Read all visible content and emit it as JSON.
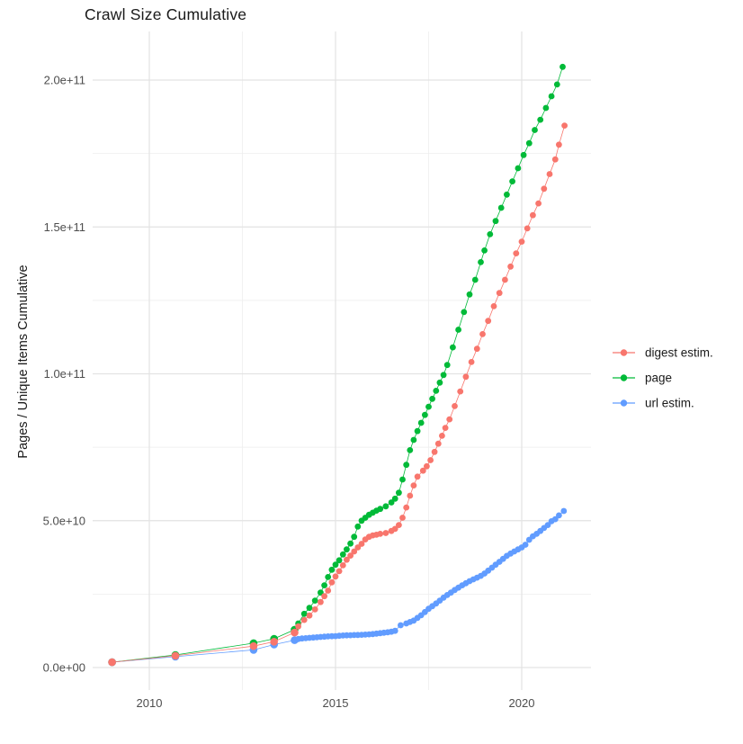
{
  "title": "Crawl Size Cumulative",
  "y_axis": {
    "label": "Pages / Unique Items Cumulative",
    "tick_labels": [
      "0.0e+00",
      "5.0e+10",
      "1.0e+11",
      "1.5e+11",
      "2.0e+11"
    ],
    "tick_values": [
      0,
      50000000000.0,
      100000000000.0,
      150000000000.0,
      200000000000.0
    ],
    "minor_values": [
      25000000000.0,
      75000000000.0,
      125000000000.0,
      175000000000.0
    ]
  },
  "x_axis": {
    "tick_labels": [
      "2010",
      "2015",
      "2020"
    ],
    "tick_values": [
      2010,
      2015,
      2020
    ],
    "minor_values": [
      2012.5,
      2017.5
    ]
  },
  "legend": {
    "items": [
      {
        "label": "digest estim.",
        "series": "digest",
        "color": "#F8766D"
      },
      {
        "label": "page",
        "series": "page",
        "color": "#00BA38"
      },
      {
        "label": "url estim.",
        "series": "url",
        "color": "#619CFF"
      }
    ]
  },
  "colors": {
    "digest": "#F8766D",
    "page": "#00BA38",
    "url": "#619CFF",
    "grid_major": "#e3e3e3",
    "grid_minor": "#eeeeee"
  },
  "chart_data": {
    "type": "scatter",
    "title": "Crawl Size Cumulative",
    "xlabel": "",
    "ylabel": "Pages / Unique Items Cumulative",
    "xlim": [
      2008.5,
      2021.9
    ],
    "ylim": [
      -7500000000.0,
      217000000000.0
    ],
    "grid": true,
    "legend_position": "right",
    "series": [
      {
        "name": "page",
        "color": "#00BA38",
        "points": [
          [
            2009.0,
            1800000000.0
          ],
          [
            2010.7,
            4300000000.0
          ],
          [
            2012.8,
            8300000000.0
          ],
          [
            2013.35,
            9800000000.0
          ],
          [
            2013.9,
            12900000000.0
          ],
          [
            2014.0,
            15000000000.0
          ],
          [
            2014.16,
            18300000000.0
          ],
          [
            2014.3,
            20300000000.0
          ],
          [
            2014.45,
            22800000000.0
          ],
          [
            2014.6,
            25500000000.0
          ],
          [
            2014.7,
            28000000000.0
          ],
          [
            2014.8,
            30800000000.0
          ],
          [
            2014.9,
            33300000000.0
          ],
          [
            2015.0,
            35000000000.0
          ],
          [
            2015.1,
            36500000000.0
          ],
          [
            2015.2,
            38500000000.0
          ],
          [
            2015.3,
            40200000000.0
          ],
          [
            2015.4,
            42200000000.0
          ],
          [
            2015.5,
            44500000000.0
          ],
          [
            2015.6,
            48000000000.0
          ],
          [
            2015.7,
            50000000000.0
          ],
          [
            2015.8,
            51000000000.0
          ],
          [
            2015.9,
            52000000000.0
          ],
          [
            2016.0,
            52700000000.0
          ],
          [
            2016.1,
            53400000000.0
          ],
          [
            2016.2,
            54000000000.0
          ],
          [
            2016.35,
            54900000000.0
          ],
          [
            2016.5,
            56200000000.0
          ],
          [
            2016.6,
            57500000000.0
          ],
          [
            2016.7,
            59500000000.0
          ],
          [
            2016.8,
            64000000000.0
          ],
          [
            2016.9,
            69000000000.0
          ],
          [
            2017.0,
            74000000000.0
          ],
          [
            2017.1,
            77500000000.0
          ],
          [
            2017.2,
            80500000000.0
          ],
          [
            2017.3,
            83300000000.0
          ],
          [
            2017.4,
            86000000000.0
          ],
          [
            2017.5,
            88800000000.0
          ],
          [
            2017.6,
            91500000000.0
          ],
          [
            2017.7,
            94200000000.0
          ],
          [
            2017.8,
            97000000000.0
          ],
          [
            2017.9,
            99600000000.0
          ],
          [
            2018.0,
            103000000000.0
          ],
          [
            2018.15,
            109000000000.0
          ],
          [
            2018.3,
            115000000000.0
          ],
          [
            2018.45,
            121000000000.0
          ],
          [
            2018.6,
            127000000000.0
          ],
          [
            2018.75,
            132000000000.0
          ],
          [
            2018.9,
            138000000000.0
          ],
          [
            2019.0,
            142000000000.0
          ],
          [
            2019.15,
            147500000000.0
          ],
          [
            2019.3,
            152000000000.0
          ],
          [
            2019.45,
            156500000000.0
          ],
          [
            2019.6,
            161000000000.0
          ],
          [
            2019.75,
            165500000000.0
          ],
          [
            2019.9,
            170000000000.0
          ],
          [
            2020.05,
            174500000000.0
          ],
          [
            2020.2,
            178500000000.0
          ],
          [
            2020.35,
            183000000000.0
          ],
          [
            2020.5,
            186500000000.0
          ],
          [
            2020.65,
            190500000000.0
          ],
          [
            2020.8,
            194500000000.0
          ],
          [
            2020.95,
            198500000000.0
          ],
          [
            2021.1,
            204500000000.0
          ]
        ]
      },
      {
        "name": "url",
        "color": "#619CFF",
        "points": [
          [
            2009.0,
            1800000000.0
          ],
          [
            2010.7,
            3700000000.0
          ],
          [
            2012.8,
            6000000000.0
          ],
          [
            2013.35,
            7800000000.0
          ],
          [
            2013.9,
            9300000000.0
          ],
          [
            2014.0,
            9700000000.0
          ],
          [
            2014.1,
            9900000000.0
          ],
          [
            2014.2,
            10000000000.0
          ],
          [
            2014.3,
            10100000000.0
          ],
          [
            2014.4,
            10200000000.0
          ],
          [
            2014.5,
            10300000000.0
          ],
          [
            2014.6,
            10400000000.0
          ],
          [
            2014.7,
            10500000000.0
          ],
          [
            2014.8,
            10600000000.0
          ],
          [
            2014.9,
            10650000000.0
          ],
          [
            2015.0,
            10700000000.0
          ],
          [
            2015.1,
            10800000000.0
          ],
          [
            2015.2,
            10900000000.0
          ],
          [
            2015.3,
            10950000000.0
          ],
          [
            2015.4,
            11000000000.0
          ],
          [
            2015.5,
            11050000000.0
          ],
          [
            2015.6,
            11100000000.0
          ],
          [
            2015.7,
            11150000000.0
          ],
          [
            2015.8,
            11200000000.0
          ],
          [
            2015.9,
            11300000000.0
          ],
          [
            2016.0,
            11400000000.0
          ],
          [
            2016.1,
            11550000000.0
          ],
          [
            2016.2,
            11700000000.0
          ],
          [
            2016.3,
            11850000000.0
          ],
          [
            2016.4,
            12000000000.0
          ],
          [
            2016.5,
            12200000000.0
          ],
          [
            2016.6,
            12500000000.0
          ],
          [
            2016.75,
            14400000000.0
          ],
          [
            2016.9,
            15000000000.0
          ],
          [
            2017.0,
            15500000000.0
          ],
          [
            2017.1,
            16000000000.0
          ],
          [
            2017.2,
            16900000000.0
          ],
          [
            2017.3,
            17800000000.0
          ],
          [
            2017.4,
            18900000000.0
          ],
          [
            2017.5,
            20000000000.0
          ],
          [
            2017.6,
            20900000000.0
          ],
          [
            2017.7,
            21800000000.0
          ],
          [
            2017.8,
            22800000000.0
          ],
          [
            2017.9,
            23800000000.0
          ],
          [
            2018.0,
            24700000000.0
          ],
          [
            2018.1,
            25500000000.0
          ],
          [
            2018.2,
            26400000000.0
          ],
          [
            2018.3,
            27200000000.0
          ],
          [
            2018.4,
            28000000000.0
          ],
          [
            2018.5,
            28700000000.0
          ],
          [
            2018.6,
            29400000000.0
          ],
          [
            2018.7,
            30000000000.0
          ],
          [
            2018.8,
            30600000000.0
          ],
          [
            2018.9,
            31200000000.0
          ],
          [
            2019.0,
            32000000000.0
          ],
          [
            2019.1,
            33000000000.0
          ],
          [
            2019.2,
            34000000000.0
          ],
          [
            2019.3,
            35000000000.0
          ],
          [
            2019.4,
            36000000000.0
          ],
          [
            2019.5,
            37000000000.0
          ],
          [
            2019.6,
            38000000000.0
          ],
          [
            2019.7,
            38800000000.0
          ],
          [
            2019.8,
            39500000000.0
          ],
          [
            2019.9,
            40200000000.0
          ],
          [
            2020.0,
            40900000000.0
          ],
          [
            2020.1,
            41800000000.0
          ],
          [
            2020.2,
            43500000000.0
          ],
          [
            2020.3,
            44700000000.0
          ],
          [
            2020.4,
            45500000000.0
          ],
          [
            2020.5,
            46500000000.0
          ],
          [
            2020.6,
            47500000000.0
          ],
          [
            2020.7,
            48500000000.0
          ],
          [
            2020.8,
            49800000000.0
          ],
          [
            2020.9,
            50500000000.0
          ],
          [
            2021.0,
            51800000000.0
          ],
          [
            2021.13,
            53300000000.0
          ]
        ]
      },
      {
        "name": "digest",
        "color": "#F8766D",
        "points": [
          [
            2009.0,
            1800000000.0
          ],
          [
            2010.7,
            4000000000.0
          ],
          [
            2012.8,
            7300000000.0
          ],
          [
            2013.35,
            8800000000.0
          ],
          [
            2013.9,
            11900000000.0
          ],
          [
            2014.0,
            14000000000.0
          ],
          [
            2014.16,
            16200000000.0
          ],
          [
            2014.3,
            17700000000.0
          ],
          [
            2014.45,
            19800000000.0
          ],
          [
            2014.6,
            22300000000.0
          ],
          [
            2014.7,
            24300000000.0
          ],
          [
            2014.8,
            26200000000.0
          ],
          [
            2014.9,
            29000000000.0
          ],
          [
            2015.0,
            31000000000.0
          ],
          [
            2015.1,
            32800000000.0
          ],
          [
            2015.2,
            34800000000.0
          ],
          [
            2015.3,
            36700000000.0
          ],
          [
            2015.4,
            38100000000.0
          ],
          [
            2015.5,
            39500000000.0
          ],
          [
            2015.6,
            40900000000.0
          ],
          [
            2015.7,
            42100000000.0
          ],
          [
            2015.8,
            43600000000.0
          ],
          [
            2015.9,
            44500000000.0
          ],
          [
            2016.0,
            45000000000.0
          ],
          [
            2016.1,
            45200000000.0
          ],
          [
            2016.2,
            45500000000.0
          ],
          [
            2016.35,
            45800000000.0
          ],
          [
            2016.5,
            46500000000.0
          ],
          [
            2016.6,
            47200000000.0
          ],
          [
            2016.7,
            48500000000.0
          ],
          [
            2016.8,
            51000000000.0
          ],
          [
            2016.9,
            54500000000.0
          ],
          [
            2017.0,
            58500000000.0
          ],
          [
            2017.1,
            62000000000.0
          ],
          [
            2017.2,
            65000000000.0
          ],
          [
            2017.35,
            67000000000.0
          ],
          [
            2017.45,
            68500000000.0
          ],
          [
            2017.55,
            70600000000.0
          ],
          [
            2017.66,
            73400000000.0
          ],
          [
            2017.76,
            76200000000.0
          ],
          [
            2017.86,
            78900000000.0
          ],
          [
            2017.95,
            81600000000.0
          ],
          [
            2018.06,
            84500000000.0
          ],
          [
            2018.2,
            89000000000.0
          ],
          [
            2018.35,
            94000000000.0
          ],
          [
            2018.5,
            99000000000.0
          ],
          [
            2018.65,
            104000000000.0
          ],
          [
            2018.8,
            108500000000.0
          ],
          [
            2018.95,
            113500000000.0
          ],
          [
            2019.1,
            118000000000.0
          ],
          [
            2019.25,
            123000000000.0
          ],
          [
            2019.4,
            127500000000.0
          ],
          [
            2019.55,
            132000000000.0
          ],
          [
            2019.7,
            136500000000.0
          ],
          [
            2019.85,
            141000000000.0
          ],
          [
            2020.0,
            145000000000.0
          ],
          [
            2020.15,
            149500000000.0
          ],
          [
            2020.3,
            154000000000.0
          ],
          [
            2020.45,
            158000000000.0
          ],
          [
            2020.6,
            163000000000.0
          ],
          [
            2020.75,
            168000000000.0
          ],
          [
            2020.9,
            173000000000.0
          ],
          [
            2021.0,
            178000000000.0
          ],
          [
            2021.15,
            184500000000.0
          ]
        ]
      }
    ]
  }
}
